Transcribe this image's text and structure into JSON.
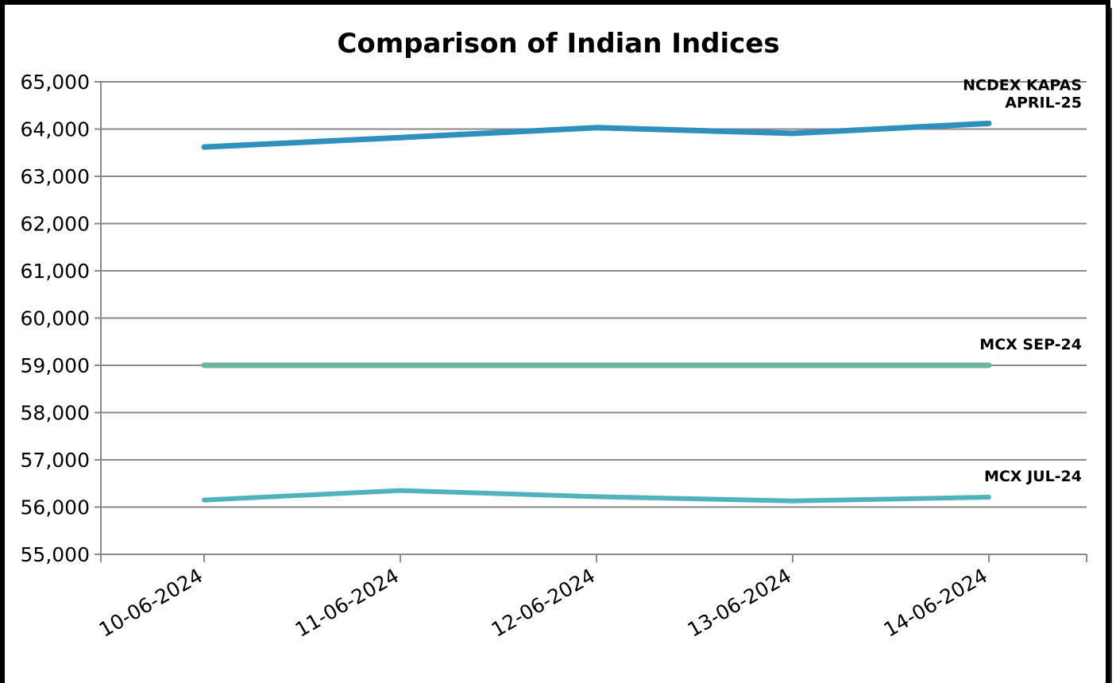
{
  "chart_data": {
    "type": "line",
    "title": "Comparison of Indian Indices",
    "xlabel": "",
    "ylabel": "",
    "categories": [
      "10-06-2024",
      "11-06-2024",
      "12-06-2024",
      "13-06-2024",
      "14-06-2024"
    ],
    "ylim": [
      55000,
      65000
    ],
    "yticks": [
      55000,
      56000,
      57000,
      58000,
      59000,
      60000,
      61000,
      62000,
      63000,
      64000,
      65000
    ],
    "ytick_labels": [
      "55,000",
      "56,000",
      "57,000",
      "58,000",
      "59,000",
      "60,000",
      "61,000",
      "62,000",
      "63,000",
      "64,000",
      "65,000"
    ],
    "grid": "horizontal",
    "legend": "none",
    "series": [
      {
        "name": "NCDEX KAPAS APRIL-25",
        "label_lines": [
          "NCDEX KAPAS",
          "APRIL-25"
        ],
        "values": [
          63620,
          63820,
          64030,
          63910,
          64120
        ],
        "color": "#2f90bb",
        "width": 7
      },
      {
        "name": "MCX SEP-24",
        "label_lines": [
          "MCX SEP-24"
        ],
        "values": [
          59000,
          59000,
          59000,
          59000,
          59000
        ],
        "color": "#6cb79c",
        "width": 7
      },
      {
        "name": "MCX JUL-24",
        "label_lines": [
          "MCX JUL-24"
        ],
        "values": [
          56150,
          56350,
          56220,
          56130,
          56210
        ],
        "color": "#4fb2bd",
        "width": 6
      }
    ]
  }
}
